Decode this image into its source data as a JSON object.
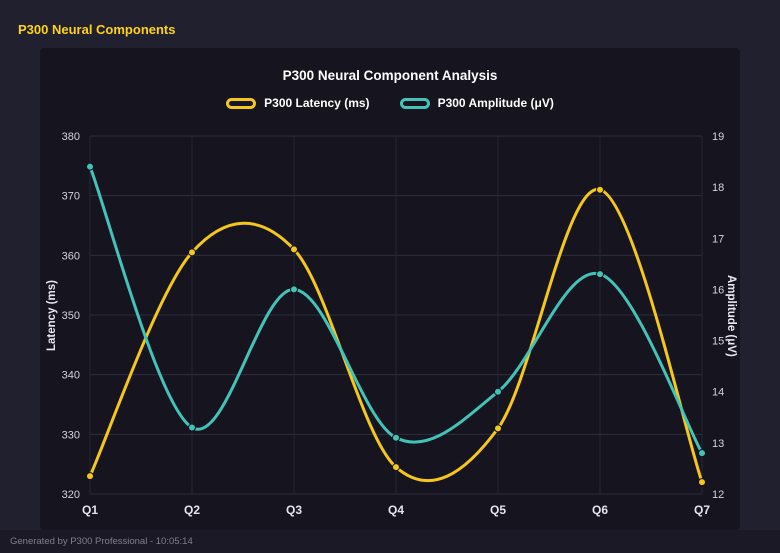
{
  "page": {
    "header_title": "P300 Neural Components",
    "footer_text": "Generated by P300 Professional - 10:05:14"
  },
  "colors": {
    "background": "#21202e",
    "panel": "#15141f",
    "header_accent": "#ffd21e",
    "latency_line": "#f5c71a",
    "amplitude_line": "#43c3b8",
    "gridline": "#2d2d3f",
    "tick_text": "#d4d4de"
  },
  "chart_data": {
    "type": "line",
    "title": "P300 Neural Component Analysis",
    "smooth": true,
    "grid": true,
    "legend_position": "top",
    "categories": [
      "Q1",
      "Q2",
      "Q3",
      "Q4",
      "Q5",
      "Q6",
      "Q7"
    ],
    "series": [
      {
        "name": "P300 Latency (ms)",
        "axis": "left",
        "color": "#f5c71a",
        "values": [
          323,
          360.5,
          361,
          324.5,
          331,
          371,
          322
        ]
      },
      {
        "name": "P300 Amplitude (μV)",
        "axis": "right",
        "color": "#43c3b8",
        "values": [
          18.4,
          13.3,
          16,
          13.1,
          14,
          16.3,
          12.8
        ]
      }
    ],
    "left_axis": {
      "label": "Latency (ms)",
      "min": 320,
      "max": 380,
      "step": 10
    },
    "right_axis": {
      "label": "Amplitude (μV)",
      "min": 12,
      "max": 19,
      "step": 1
    }
  }
}
